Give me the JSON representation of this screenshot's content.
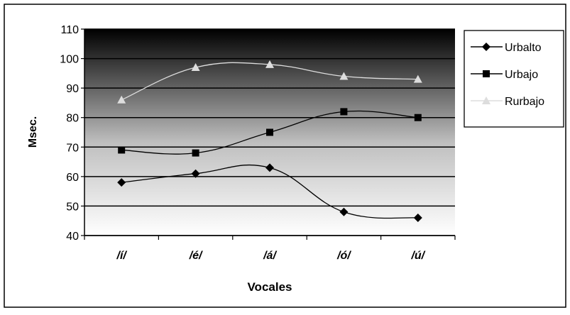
{
  "chart_data": {
    "type": "line",
    "title": "",
    "xlabel": "Vocales",
    "ylabel": "Msec.",
    "categories": [
      "/í/",
      "/é/",
      "/á/",
      "/ó/",
      "/ú/"
    ],
    "ylim": [
      40,
      110
    ],
    "yticks": [
      40,
      50,
      60,
      70,
      80,
      90,
      100,
      110
    ],
    "smoothed": true,
    "grid": true,
    "legend_position": "right",
    "plot_background": "vertical gradient, black at top to white at bottom",
    "series": [
      {
        "name": "Urbalto",
        "marker": "diamond",
        "color": "#000000",
        "values": [
          58,
          61,
          63,
          48,
          46
        ]
      },
      {
        "name": "Urbajo",
        "marker": "square",
        "color": "#000000",
        "values": [
          69,
          68,
          75,
          82,
          80
        ]
      },
      {
        "name": "Rurbajo",
        "marker": "triangle",
        "color": "#dddddd",
        "values": [
          86,
          97,
          98,
          94,
          93
        ]
      }
    ]
  }
}
